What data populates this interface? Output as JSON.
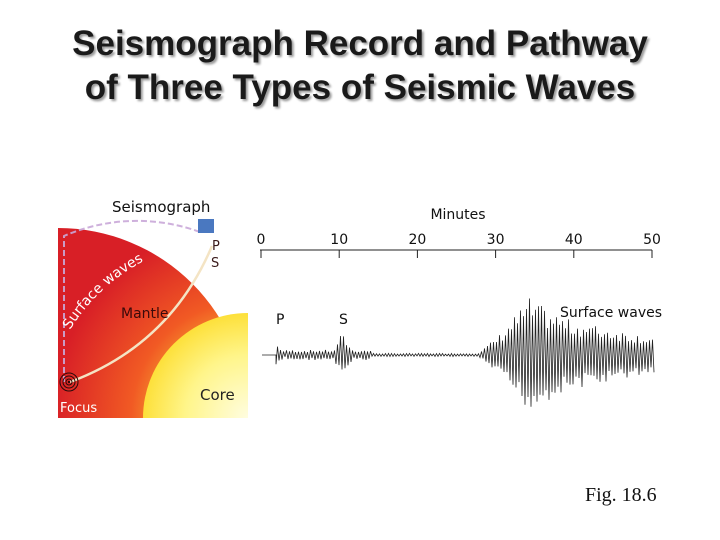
{
  "title": {
    "line1": "Seismograph Record and Pathway",
    "line2": "of Three Types of Seismic Waves"
  },
  "earth": {
    "seismograph_label": "Seismograph",
    "p_label": "P",
    "s_label": "S",
    "surface_waves_label": "Surface waves",
    "mantle_label": "Mantle",
    "core_label": "Core",
    "focus_label": "Focus",
    "colors": {
      "crust_outer": "#d81f26",
      "mantle_mid": "#f15a24",
      "mantle_inner": "#f7931e",
      "core": "#fff27a",
      "seismograph": "#4a78c0"
    }
  },
  "record": {
    "axis_title": "Minutes",
    "ticks": [
      "0",
      "10",
      "20",
      "30",
      "40",
      "50"
    ],
    "p_label": "P",
    "s_label": "S",
    "surface_waves_label": "Surface waves"
  },
  "caption": "Fig. 18.6"
}
